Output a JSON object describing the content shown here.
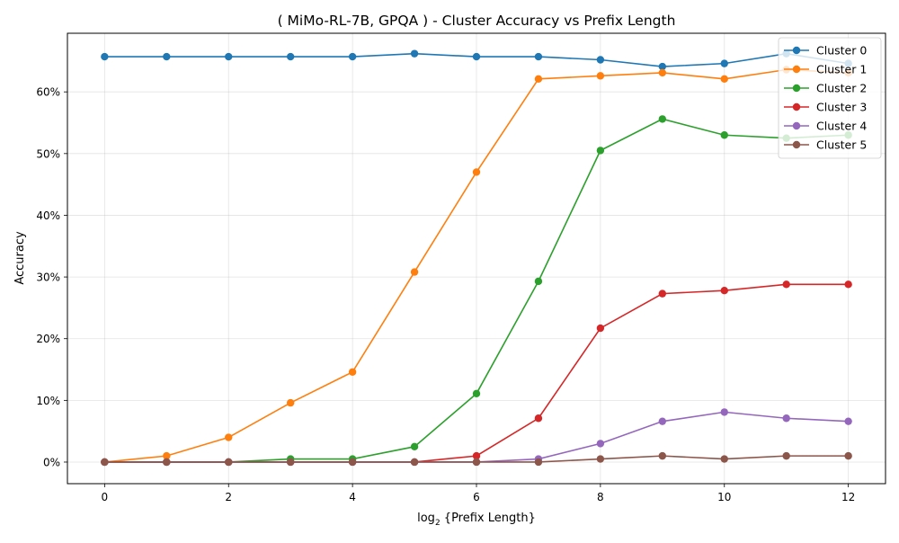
{
  "chart_data": {
    "type": "line",
    "title": "( MiMo-RL-7B, GPQA ) - Cluster Accuracy vs Prefix Length",
    "xlabel_main": "log",
    "xlabel_sub": "2",
    "xlabel_rest": " {Prefix Length}",
    "ylabel": "Accuracy",
    "x": [
      0,
      1,
      2,
      3,
      4,
      5,
      6,
      7,
      8,
      9,
      10,
      11,
      12
    ],
    "xlim": [
      -0.6,
      12.6
    ],
    "ylim": [
      -0.035,
      0.695
    ],
    "xticks": [
      0,
      2,
      4,
      6,
      8,
      10,
      12
    ],
    "xtick_labels": [
      "0",
      "2",
      "4",
      "6",
      "8",
      "10",
      "12"
    ],
    "yticks": [
      0,
      0.1,
      0.2,
      0.3,
      0.4,
      0.5,
      0.6
    ],
    "ytick_labels": [
      "0%",
      "10%",
      "20%",
      "30%",
      "40%",
      "50%",
      "60%"
    ],
    "grid": true,
    "legend_position": "top-right",
    "series": [
      {
        "name": "Cluster 0",
        "color": "#1f77b4",
        "values": [
          0.657,
          0.657,
          0.657,
          0.657,
          0.657,
          0.662,
          0.657,
          0.657,
          0.652,
          0.641,
          0.646,
          0.662,
          0.646
        ]
      },
      {
        "name": "Cluster 1",
        "color": "#ff7f0e",
        "values": [
          0.0,
          0.01,
          0.04,
          0.096,
          0.146,
          0.308,
          0.47,
          0.621,
          0.626,
          0.631,
          0.621,
          0.636,
          0.631
        ]
      },
      {
        "name": "Cluster 2",
        "color": "#2ca02c",
        "values": [
          0.0,
          0.0,
          0.0,
          0.005,
          0.005,
          0.025,
          0.111,
          0.293,
          0.505,
          0.556,
          0.53,
          0.525,
          0.53
        ]
      },
      {
        "name": "Cluster 3",
        "color": "#d62728",
        "values": [
          0.0,
          0.0,
          0.0,
          0.0,
          0.0,
          0.0,
          0.01,
          0.071,
          0.217,
          0.273,
          0.278,
          0.288,
          0.288
        ]
      },
      {
        "name": "Cluster 4",
        "color": "#9467bd",
        "values": [
          0.0,
          0.0,
          0.0,
          0.0,
          0.0,
          0.0,
          0.0,
          0.005,
          0.03,
          0.066,
          0.081,
          0.071,
          0.066
        ]
      },
      {
        "name": "Cluster 5",
        "color": "#8c564b",
        "values": [
          0.0,
          0.0,
          0.0,
          0.0,
          0.0,
          0.0,
          0.0,
          0.0,
          0.005,
          0.01,
          0.005,
          0.01,
          0.01
        ]
      }
    ]
  }
}
